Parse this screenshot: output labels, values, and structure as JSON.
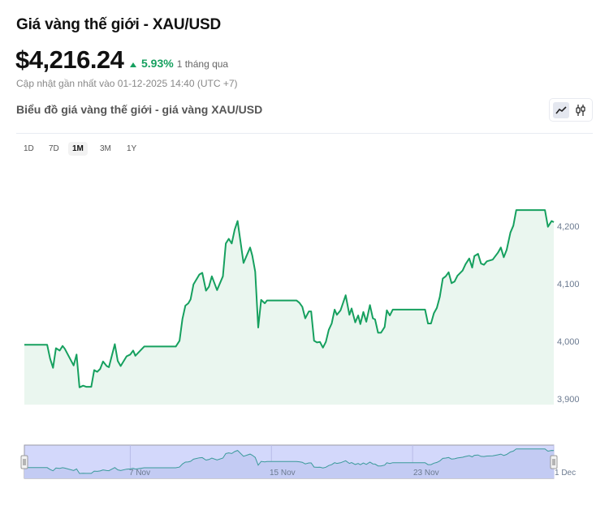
{
  "header": {
    "title": "Giá vàng thế giới - XAU/USD",
    "price": "$4,216.24",
    "change_pct": "5.93%",
    "change_period": "1 tháng qua",
    "updated": "Cập nhật gần nhất vào 01-12-2025 14:40 (UTC +7)",
    "chart_title": "Biểu đồ giá vàng thế giới - giá vàng XAU/USD"
  },
  "toolbar": {
    "chart_types": [
      {
        "icon": "line-chart-icon",
        "active": true
      },
      {
        "icon": "candlestick-icon",
        "active": false
      }
    ],
    "ranges": [
      {
        "label": "1D",
        "active": false
      },
      {
        "label": "7D",
        "active": false
      },
      {
        "label": "1M",
        "active": true
      },
      {
        "label": "3M",
        "active": false
      },
      {
        "label": "1Y",
        "active": false
      }
    ]
  },
  "colors": {
    "line": "#16a05f",
    "fill": "#eaf6ef",
    "up": "#16a05f",
    "navigator_bg": "#d3d8fb",
    "navigator_line": "#3a9a9a"
  },
  "chart_data": {
    "type": "area",
    "title": "",
    "xlabel": "",
    "ylabel": "",
    "ylim": [
      3890,
      4235
    ],
    "xlim": [
      "2025-11-01 00:00",
      "2025-12-01 00:00"
    ],
    "yticks": [
      "4,200",
      "4,100",
      "4,000",
      "3,900"
    ],
    "ytick_values": [
      4200,
      4100,
      4000,
      3900
    ],
    "grid": false,
    "y_axis_position": "right",
    "navigator": {
      "ticks": [
        "7 Nov",
        "15 Nov",
        "23 Nov",
        "1 Dec"
      ],
      "tick_dates": [
        "2025-11-07 00:00",
        "2025-11-15 00:00",
        "2025-11-23 00:00",
        "2025-12-01 00:00"
      ]
    },
    "points": [
      [
        "2025-11-01 00:00",
        3994
      ],
      [
        "2025-11-02 07:00",
        3994
      ],
      [
        "2025-11-02 11:00",
        3970
      ],
      [
        "2025-11-02 15:00",
        3954
      ],
      [
        "2025-11-02 19:00",
        3988
      ],
      [
        "2025-11-03 00:00",
        3984
      ],
      [
        "2025-11-03 04:00",
        3992
      ],
      [
        "2025-11-03 07:00",
        3987
      ],
      [
        "2025-11-03 19:00",
        3958
      ],
      [
        "2025-11-03 23:00",
        3977
      ],
      [
        "2025-11-04 03:00",
        3920
      ],
      [
        "2025-11-04 08:00",
        3923
      ],
      [
        "2025-11-04 12:00",
        3921
      ],
      [
        "2025-11-04 19:00",
        3921
      ],
      [
        "2025-11-04 23:00",
        3950
      ],
      [
        "2025-11-05 03:00",
        3947
      ],
      [
        "2025-11-05 07:00",
        3952
      ],
      [
        "2025-11-05 11:00",
        3965
      ],
      [
        "2025-11-05 16:00",
        3957
      ],
      [
        "2025-11-05 19:00",
        3955
      ],
      [
        "2025-11-06 03:00",
        3995
      ],
      [
        "2025-11-06 07:00",
        3966
      ],
      [
        "2025-11-06 11:00",
        3957
      ],
      [
        "2025-11-06 19:00",
        3974
      ],
      [
        "2025-11-07 00:00",
        3977
      ],
      [
        "2025-11-07 04:00",
        3984
      ],
      [
        "2025-11-07 07:00",
        3975
      ],
      [
        "2025-11-07 19:00",
        3991
      ],
      [
        "2025-11-09 14:00",
        3991
      ],
      [
        "2025-11-09 19:00",
        4001
      ],
      [
        "2025-11-09 23:00",
        4039
      ],
      [
        "2025-11-10 03:00",
        4062
      ],
      [
        "2025-11-10 07:00",
        4066
      ],
      [
        "2025-11-10 10:00",
        4073
      ],
      [
        "2025-11-10 14:00",
        4099
      ],
      [
        "2025-11-10 22:00",
        4116
      ],
      [
        "2025-11-11 02:00",
        4119
      ],
      [
        "2025-11-11 07:00",
        4088
      ],
      [
        "2025-11-11 11:00",
        4095
      ],
      [
        "2025-11-11 15:00",
        4113
      ],
      [
        "2025-11-11 22:00",
        4089
      ],
      [
        "2025-11-12 06:00",
        4113
      ],
      [
        "2025-11-12 10:00",
        4170
      ],
      [
        "2025-11-12 14:00",
        4178
      ],
      [
        "2025-11-12 18:00",
        4170
      ],
      [
        "2025-11-12 22:00",
        4194
      ],
      [
        "2025-11-13 02:00",
        4209
      ],
      [
        "2025-11-13 10:00",
        4136
      ],
      [
        "2025-11-13 19:00",
        4163
      ],
      [
        "2025-11-13 22:00",
        4149
      ],
      [
        "2025-11-14 02:00",
        4121
      ],
      [
        "2025-11-14 06:00",
        4024
      ],
      [
        "2025-11-14 10:00",
        4072
      ],
      [
        "2025-11-14 15:00",
        4066
      ],
      [
        "2025-11-14 18:00",
        4071
      ],
      [
        "2025-11-16 10:00",
        4071
      ],
      [
        "2025-11-16 14:00",
        4067
      ],
      [
        "2025-11-16 18:00",
        4060
      ],
      [
        "2025-11-16 22:00",
        4040
      ],
      [
        "2025-11-17 03:00",
        4052
      ],
      [
        "2025-11-17 06:00",
        4052
      ],
      [
        "2025-11-17 10:00",
        4001
      ],
      [
        "2025-11-17 14:00",
        3998
      ],
      [
        "2025-11-17 18:00",
        3999
      ],
      [
        "2025-11-17 22:00",
        3989
      ],
      [
        "2025-11-18 02:00",
        3999
      ],
      [
        "2025-11-18 06:00",
        4020
      ],
      [
        "2025-11-18 10:00",
        4031
      ],
      [
        "2025-11-18 14:00",
        4055
      ],
      [
        "2025-11-18 17:00",
        4046
      ],
      [
        "2025-11-18 22:00",
        4054
      ],
      [
        "2025-11-19 05:00",
        4080
      ],
      [
        "2025-11-19 10:00",
        4046
      ],
      [
        "2025-11-19 13:00",
        4057
      ],
      [
        "2025-11-19 18:00",
        4033
      ],
      [
        "2025-11-19 22:00",
        4045
      ],
      [
        "2025-11-20 01:00",
        4030
      ],
      [
        "2025-11-20 05:00",
        4051
      ],
      [
        "2025-11-20 09:00",
        4034
      ],
      [
        "2025-11-20 14:00",
        4063
      ],
      [
        "2025-11-20 18:00",
        4040
      ],
      [
        "2025-11-20 21:00",
        4038
      ],
      [
        "2025-11-21 01:00",
        4015
      ],
      [
        "2025-11-21 05:00",
        4015
      ],
      [
        "2025-11-21 10:00",
        4025
      ],
      [
        "2025-11-21 13:00",
        4054
      ],
      [
        "2025-11-21 17:00",
        4045
      ],
      [
        "2025-11-21 21:00",
        4055
      ],
      [
        "2025-11-23 17:00",
        4055
      ],
      [
        "2025-11-23 21:00",
        4031
      ],
      [
        "2025-11-24 01:00",
        4031
      ],
      [
        "2025-11-24 05:00",
        4049
      ],
      [
        "2025-11-24 09:00",
        4058
      ],
      [
        "2025-11-24 13:00",
        4077
      ],
      [
        "2025-11-24 17:00",
        4109
      ],
      [
        "2025-11-24 21:00",
        4113
      ],
      [
        "2025-11-25 01:00",
        4120
      ],
      [
        "2025-11-25 05:00",
        4101
      ],
      [
        "2025-11-25 09:00",
        4104
      ],
      [
        "2025-11-25 13:00",
        4114
      ],
      [
        "2025-11-25 20:00",
        4123
      ],
      [
        "2025-11-26 00:00",
        4134
      ],
      [
        "2025-11-26 05:00",
        4144
      ],
      [
        "2025-11-26 09:00",
        4128
      ],
      [
        "2025-11-26 12:00",
        4148
      ],
      [
        "2025-11-26 17:00",
        4152
      ],
      [
        "2025-11-26 21:00",
        4135
      ],
      [
        "2025-11-27 01:00",
        4133
      ],
      [
        "2025-11-27 05:00",
        4139
      ],
      [
        "2025-11-27 13:00",
        4142
      ],
      [
        "2025-11-27 20:00",
        4154
      ],
      [
        "2025-11-28 00:00",
        4163
      ],
      [
        "2025-11-28 04:00",
        4146
      ],
      [
        "2025-11-28 08:00",
        4159
      ],
      [
        "2025-11-28 13:00",
        4189
      ],
      [
        "2025-11-28 17:00",
        4201
      ],
      [
        "2025-11-28 21:00",
        4228
      ],
      [
        "2025-11-30 12:00",
        4228
      ],
      [
        "2025-11-30 16:00",
        4199
      ],
      [
        "2025-11-30 21:00",
        4209
      ],
      [
        "2025-12-01 00:00",
        4207
      ]
    ]
  }
}
